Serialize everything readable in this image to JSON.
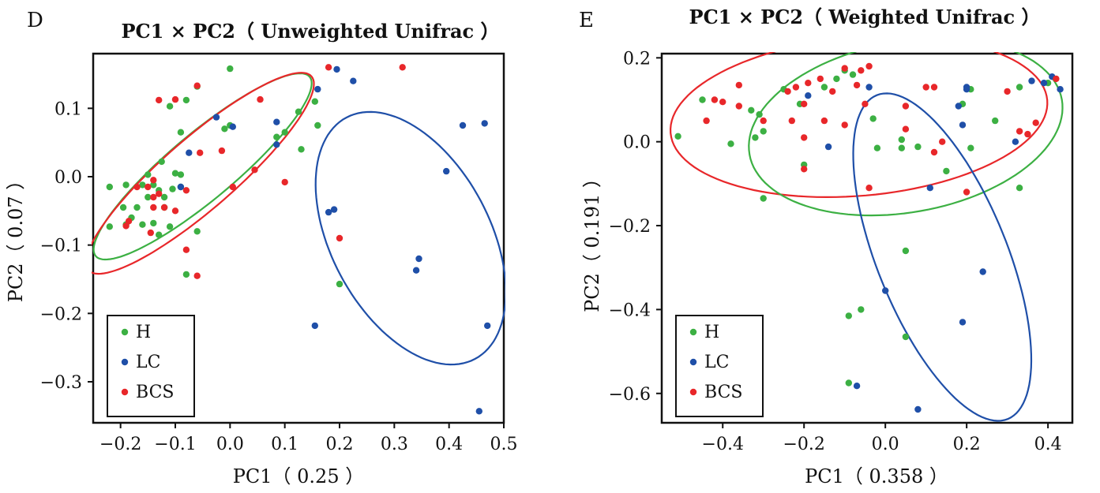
{
  "panels": [
    {
      "letter": "D",
      "title": "PC1 × PC2（ Unweighted Unifrac ）",
      "xlabel": "PC1（ 0.25 ）",
      "ylabel": "PC2（ 0.07 ）"
    },
    {
      "letter": "E",
      "title": "PC1 × PC2（ Weighted Unifrac ）",
      "xlabel": "PC1（ 0.358 ）",
      "ylabel": "PC2（ 0.191 ）"
    }
  ],
  "legend": [
    {
      "label": "H",
      "color": "#3cb043"
    },
    {
      "label": "LC",
      "color": "#1f4fa8"
    },
    {
      "label": "BCS",
      "color": "#e8272a"
    }
  ],
  "chart_data": [
    {
      "type": "scatter",
      "title": "PC1 × PC2（ Unweighted Unifrac ）",
      "xlabel": "PC1（ 0.25 ）",
      "ylabel": "PC2（ 0.07 ）",
      "xlim": [
        -0.25,
        0.5
      ],
      "ylim": [
        -0.36,
        0.18
      ],
      "xticks": [
        -0.2,
        -0.1,
        0.0,
        0.1,
        0.2,
        0.3,
        0.4,
        0.5
      ],
      "xtick_labels": [
        "−0.2",
        "−0.1",
        "0.0",
        "0.1",
        "0.2",
        "0.3",
        "0.4",
        "0.5"
      ],
      "yticks": [
        -0.3,
        -0.2,
        -0.1,
        0.0,
        0.1
      ],
      "ytick_labels": [
        "−0.3",
        "−0.2",
        "−0.1",
        "0.0",
        "0.1"
      ],
      "legend_position": "bottom-left",
      "grid": false,
      "series": [
        {
          "name": "H",
          "color": "#3cb043",
          "points": [
            [
              0.0,
              0.158
            ],
            [
              -0.06,
              0.132
            ],
            [
              -0.08,
              0.112
            ],
            [
              -0.11,
              0.103
            ],
            [
              -0.09,
              0.065
            ],
            [
              -0.01,
              0.07
            ],
            [
              0.0,
              0.075
            ],
            [
              0.085,
              0.058
            ],
            [
              0.1,
              0.065
            ],
            [
              0.125,
              0.095
            ],
            [
              0.13,
              0.04
            ],
            [
              0.16,
              0.075
            ],
            [
              0.155,
              0.11
            ],
            [
              -0.15,
              0.003
            ],
            [
              -0.125,
              0.022
            ],
            [
              -0.1,
              0.005
            ],
            [
              -0.09,
              0.003
            ],
            [
              -0.09,
              -0.015
            ],
            [
              -0.105,
              -0.018
            ],
            [
              -0.14,
              -0.012
            ],
            [
              -0.16,
              -0.012
            ],
            [
              -0.19,
              -0.012
            ],
            [
              -0.13,
              -0.02
            ],
            [
              -0.12,
              -0.03
            ],
            [
              -0.15,
              -0.03
            ],
            [
              -0.17,
              -0.045
            ],
            [
              -0.195,
              -0.045
            ],
            [
              -0.22,
              -0.015
            ],
            [
              -0.12,
              -0.045
            ],
            [
              -0.18,
              -0.06
            ],
            [
              -0.19,
              -0.07
            ],
            [
              -0.22,
              -0.073
            ],
            [
              -0.16,
              -0.07
            ],
            [
              -0.14,
              -0.068
            ],
            [
              -0.11,
              -0.073
            ],
            [
              -0.13,
              -0.085
            ],
            [
              -0.06,
              -0.08
            ],
            [
              -0.08,
              -0.143
            ],
            [
              0.2,
              -0.157
            ]
          ]
        },
        {
          "name": "LC",
          "color": "#1f4fa8",
          "points": [
            [
              -0.025,
              0.087
            ],
            [
              0.005,
              0.073
            ],
            [
              -0.075,
              0.035
            ],
            [
              -0.09,
              -0.015
            ],
            [
              0.085,
              0.08
            ],
            [
              0.085,
              0.047
            ],
            [
              0.16,
              0.128
            ],
            [
              0.195,
              0.157
            ],
            [
              0.225,
              0.14
            ],
            [
              0.425,
              0.075
            ],
            [
              0.465,
              0.078
            ],
            [
              0.395,
              0.008
            ],
            [
              0.18,
              -0.052
            ],
            [
              0.19,
              -0.048
            ],
            [
              0.345,
              -0.12
            ],
            [
              0.34,
              -0.137
            ],
            [
              0.155,
              -0.218
            ],
            [
              0.47,
              -0.218
            ],
            [
              0.455,
              -0.343
            ]
          ]
        },
        {
          "name": "BCS",
          "color": "#e8272a",
          "points": [
            [
              -0.06,
              0.133
            ],
            [
              -0.1,
              0.113
            ],
            [
              -0.13,
              0.112
            ],
            [
              0.055,
              0.113
            ],
            [
              -0.055,
              0.035
            ],
            [
              -0.015,
              0.038
            ],
            [
              0.045,
              0.01
            ],
            [
              0.1,
              -0.008
            ],
            [
              0.18,
              0.16
            ],
            [
              0.315,
              0.16
            ],
            [
              0.005,
              -0.015
            ],
            [
              -0.14,
              -0.005
            ],
            [
              -0.15,
              -0.015
            ],
            [
              -0.17,
              -0.015
            ],
            [
              -0.13,
              -0.025
            ],
            [
              -0.08,
              -0.02
            ],
            [
              -0.12,
              -0.045
            ],
            [
              -0.14,
              -0.045
            ],
            [
              -0.1,
              -0.05
            ],
            [
              -0.14,
              -0.03
            ],
            [
              -0.185,
              -0.065
            ],
            [
              -0.19,
              -0.072
            ],
            [
              -0.145,
              -0.082
            ],
            [
              -0.08,
              -0.107
            ],
            [
              -0.06,
              -0.145
            ],
            [
              0.2,
              -0.09
            ]
          ]
        }
      ],
      "ellipses": [
        {
          "group": "H",
          "color": "#3cb043",
          "center": [
            -0.05,
            0.015
          ],
          "semi_axes": [
            0.255,
            0.06
          ],
          "angle_deg": 40
        },
        {
          "group": "BCS",
          "color": "#e8272a",
          "center": [
            -0.055,
            0.005
          ],
          "semi_axes": [
            0.27,
            0.065
          ],
          "angle_deg": 41
        },
        {
          "group": "LC",
          "color": "#1f4fa8",
          "center": [
            0.33,
            -0.09
          ],
          "semi_axes": [
            0.25,
            0.145
          ],
          "angle_deg": -62
        }
      ]
    },
    {
      "type": "scatter",
      "title": "PC1 × PC2（ Weighted Unifrac ）",
      "xlabel": "PC1（ 0.358 ）",
      "ylabel": "PC2（ 0.191 ）",
      "xlim": [
        -0.55,
        0.46
      ],
      "ylim": [
        -0.67,
        0.21
      ],
      "xticks": [
        -0.4,
        -0.2,
        0.0,
        0.2,
        0.4
      ],
      "xtick_labels": [
        "−0.4",
        "−0.2",
        "0.0",
        "0.2",
        "0.4"
      ],
      "yticks": [
        -0.6,
        -0.4,
        -0.2,
        0.0,
        0.2
      ],
      "ytick_labels": [
        "−0.6",
        "−0.4",
        "−0.2",
        "0.0",
        "0.2"
      ],
      "legend_position": "bottom-left",
      "grid": false,
      "series": [
        {
          "name": "H",
          "color": "#3cb043",
          "points": [
            [
              -0.51,
              0.013
            ],
            [
              -0.45,
              0.1
            ],
            [
              -0.38,
              -0.005
            ],
            [
              -0.33,
              0.075
            ],
            [
              -0.31,
              0.065
            ],
            [
              -0.32,
              0.01
            ],
            [
              -0.3,
              0.025
            ],
            [
              -0.25,
              0.125
            ],
            [
              -0.21,
              0.09
            ],
            [
              -0.2,
              -0.055
            ],
            [
              -0.15,
              0.13
            ],
            [
              -0.12,
              0.15
            ],
            [
              -0.1,
              0.17
            ],
            [
              -0.08,
              0.16
            ],
            [
              -0.03,
              0.055
            ],
            [
              -0.02,
              -0.015
            ],
            [
              0.04,
              0.005
            ],
            [
              0.04,
              -0.015
            ],
            [
              0.08,
              -0.012
            ],
            [
              0.15,
              -0.07
            ],
            [
              0.19,
              0.09
            ],
            [
              0.21,
              0.125
            ],
            [
              0.21,
              -0.015
            ],
            [
              0.27,
              0.05
            ],
            [
              0.33,
              0.13
            ],
            [
              0.33,
              -0.11
            ],
            [
              0.4,
              0.14
            ],
            [
              -0.3,
              -0.135
            ],
            [
              0.05,
              -0.26
            ],
            [
              -0.06,
              -0.4
            ],
            [
              -0.09,
              -0.415
            ],
            [
              0.05,
              -0.465
            ],
            [
              -0.09,
              -0.575
            ]
          ]
        },
        {
          "name": "LC",
          "color": "#1f4fa8",
          "points": [
            [
              -0.19,
              0.11
            ],
            [
              -0.04,
              0.13
            ],
            [
              0.18,
              0.085
            ],
            [
              0.2,
              0.125
            ],
            [
              0.2,
              0.13
            ],
            [
              0.36,
              0.145
            ],
            [
              0.39,
              0.14
            ],
            [
              0.41,
              0.155
            ],
            [
              0.43,
              0.125
            ],
            [
              -0.14,
              -0.012
            ],
            [
              0.19,
              0.04
            ],
            [
              0.32,
              0.0
            ],
            [
              0.11,
              -0.11
            ],
            [
              0.24,
              -0.31
            ],
            [
              0.0,
              -0.355
            ],
            [
              0.19,
              -0.43
            ],
            [
              -0.07,
              -0.582
            ],
            [
              0.08,
              -0.638
            ]
          ]
        },
        {
          "name": "BCS",
          "color": "#e8272a",
          "points": [
            [
              -0.42,
              0.1
            ],
            [
              -0.4,
              0.095
            ],
            [
              -0.36,
              0.135
            ],
            [
              -0.36,
              0.085
            ],
            [
              -0.3,
              0.05
            ],
            [
              -0.44,
              0.05
            ],
            [
              -0.24,
              0.12
            ],
            [
              -0.22,
              0.13
            ],
            [
              -0.19,
              0.14
            ],
            [
              -0.16,
              0.15
            ],
            [
              -0.13,
              0.12
            ],
            [
              -0.1,
              0.175
            ],
            [
              -0.06,
              0.17
            ],
            [
              -0.04,
              0.18
            ],
            [
              -0.2,
              0.09
            ],
            [
              -0.23,
              0.05
            ],
            [
              -0.2,
              0.01
            ],
            [
              -0.15,
              0.05
            ],
            [
              -0.1,
              0.04
            ],
            [
              -0.05,
              0.09
            ],
            [
              -0.07,
              0.135
            ],
            [
              -0.2,
              -0.065
            ],
            [
              0.1,
              0.13
            ],
            [
              0.12,
              0.13
            ],
            [
              0.05,
              0.085
            ],
            [
              0.05,
              0.03
            ],
            [
              0.12,
              -0.025
            ],
            [
              0.14,
              0.0
            ],
            [
              -0.04,
              -0.11
            ],
            [
              0.2,
              -0.12
            ],
            [
              0.3,
              0.12
            ],
            [
              0.33,
              0.025
            ],
            [
              0.35,
              0.018
            ],
            [
              0.37,
              0.045
            ],
            [
              0.42,
              0.15
            ]
          ]
        }
      ],
      "ellipses": [
        {
          "group": "BCS",
          "color": "#e8272a",
          "center": [
            -0.065,
            0.06
          ],
          "semi_axes": [
            0.465,
            0.195
          ],
          "angle_deg": 5
        },
        {
          "group": "H",
          "color": "#3cb043",
          "center": [
            0.05,
            0.035
          ],
          "semi_axes": [
            0.39,
            0.21
          ],
          "angle_deg": 10
        },
        {
          "group": "LC",
          "color": "#1f4fa8",
          "center": [
            0.14,
            -0.275
          ],
          "semi_axes": [
            0.43,
            0.16
          ],
          "angle_deg": -68
        }
      ]
    }
  ]
}
